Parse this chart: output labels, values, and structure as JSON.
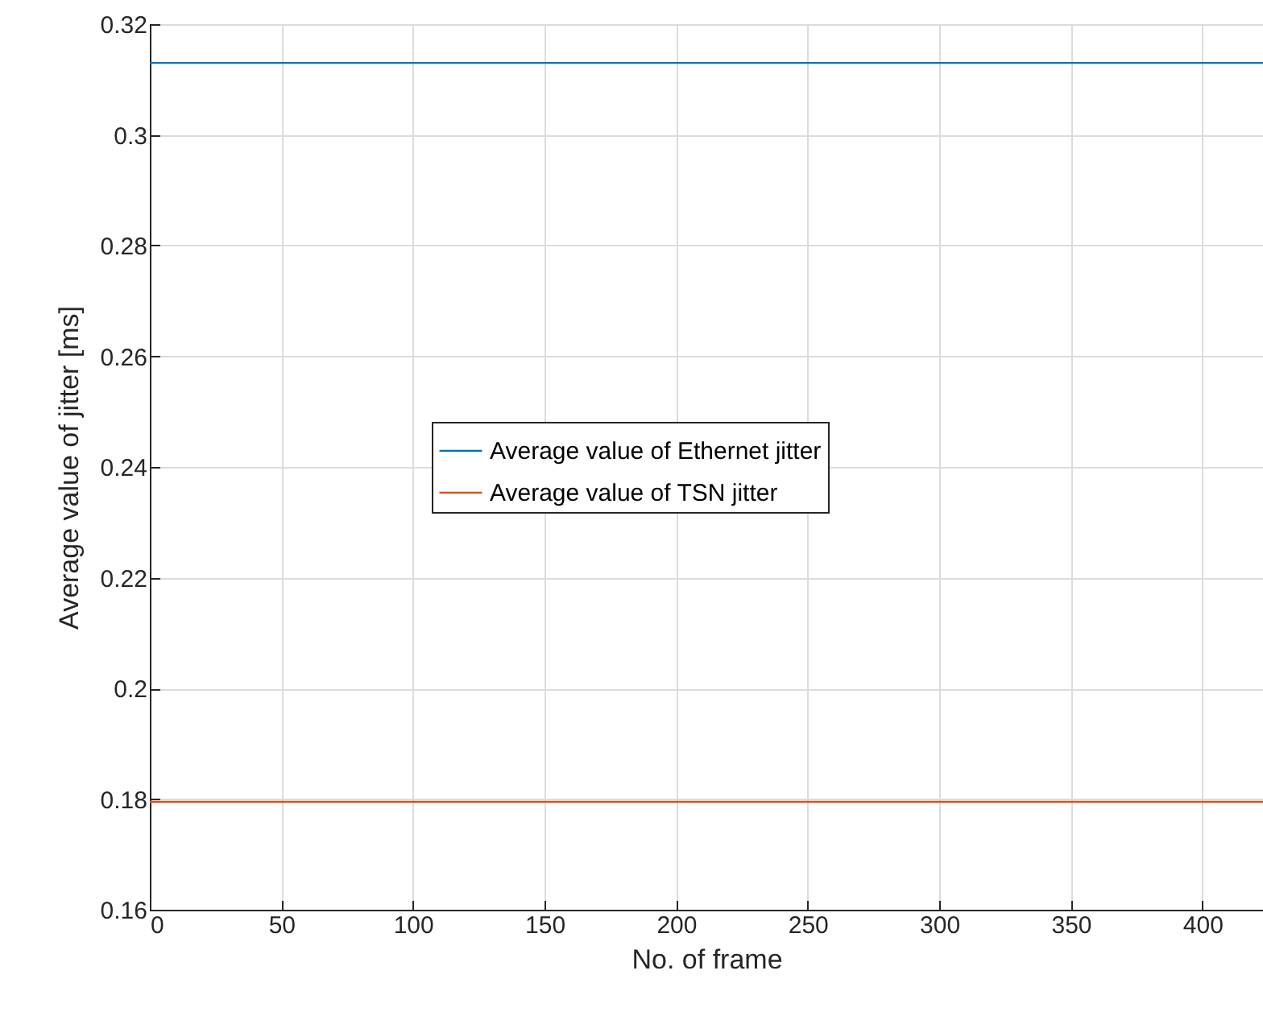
{
  "chart_data": {
    "type": "line",
    "xlabel": "No. of frame",
    "ylabel": "Average value of jitter [ms]",
    "x": [
      0,
      423
    ],
    "series": [
      {
        "name": "Average value of Ethernet jitter",
        "color": "#0072bd",
        "values": [
          0.313,
          0.313
        ]
      },
      {
        "name": "Average value of TSN jitter",
        "color": "#d95319",
        "values": [
          0.1795,
          0.1795
        ]
      }
    ],
    "xlim": [
      0,
      423
    ],
    "xticks": [
      0,
      50,
      100,
      150,
      200,
      250,
      300,
      350,
      400
    ],
    "ylim": [
      0.16,
      0.32
    ],
    "yticks": [
      0.16,
      0.18,
      0.2,
      0.22,
      0.24,
      0.26,
      0.28,
      0.3,
      0.32
    ],
    "grid": true,
    "legend": "center",
    "marker": "none",
    "line_style": "solid"
  }
}
